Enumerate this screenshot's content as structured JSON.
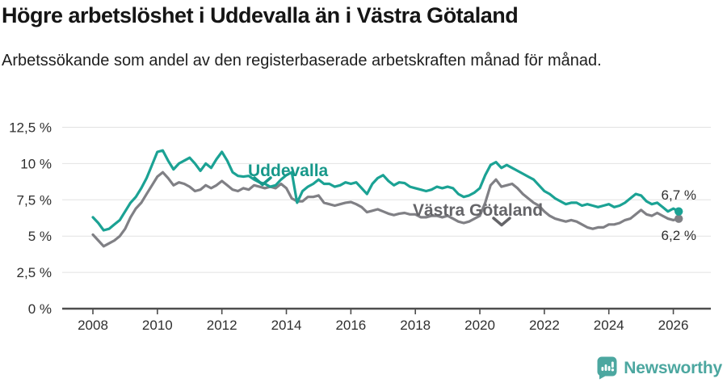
{
  "header": {
    "title": "Högre arbetslöshet i Uddevalla än i Västra Götaland",
    "subtitle": "Arbetssökande som andel av den registerbaserade arbetskraften månad för månad."
  },
  "chart_data": {
    "type": "line",
    "x_start_year": 2008,
    "x_step_years": 0.166667,
    "x_tick_years": [
      2008,
      2010,
      2012,
      2014,
      2016,
      2018,
      2020,
      2022,
      2024,
      2026
    ],
    "x_tick_labels": [
      "2008",
      "2010",
      "2012",
      "2014",
      "2016",
      "2018",
      "2020",
      "2022",
      "2024",
      "2026"
    ],
    "y_ticks": [
      {
        "value": 0,
        "label": "0 %"
      },
      {
        "value": 2.5,
        "label": "2,5 %"
      },
      {
        "value": 5,
        "label": "5 %"
      },
      {
        "value": 7.5,
        "label": "7,5 %"
      },
      {
        "value": 10,
        "label": "10 %"
      },
      {
        "value": 12.5,
        "label": "12,5 %"
      }
    ],
    "ylim": [
      0,
      12.5
    ],
    "grid": "horizontal",
    "legend": "inline-labels",
    "series": [
      {
        "name": "Uddevalla",
        "color": "#1ba294",
        "label_color": "#17988a",
        "end_label": "6,7 %",
        "end_value": 6.7,
        "values": [
          6.3,
          5.9,
          5.4,
          5.5,
          5.8,
          6.1,
          6.7,
          7.3,
          7.7,
          8.3,
          9.0,
          9.9,
          10.8,
          10.9,
          10.2,
          9.6,
          10.0,
          10.2,
          10.4,
          10.0,
          9.5,
          10.0,
          9.7,
          10.3,
          10.8,
          10.2,
          9.4,
          9.15,
          9.1,
          9.15,
          8.9,
          8.7,
          8.6,
          8.4,
          8.5,
          8.9,
          9.2,
          9.4,
          7.3,
          8.1,
          8.4,
          8.6,
          8.9,
          8.6,
          8.6,
          8.4,
          8.5,
          8.7,
          8.6,
          8.7,
          8.3,
          7.9,
          8.6,
          9.0,
          9.2,
          8.8,
          8.5,
          8.7,
          8.65,
          8.4,
          8.3,
          8.2,
          8.1,
          8.2,
          8.4,
          8.3,
          8.4,
          8.3,
          7.9,
          7.7,
          7.8,
          8.0,
          8.3,
          9.2,
          9.9,
          10.1,
          9.7,
          9.9,
          9.7,
          9.5,
          9.3,
          9.1,
          8.9,
          8.5,
          8.1,
          7.9,
          7.6,
          7.4,
          7.2,
          7.3,
          7.3,
          7.1,
          7.2,
          7.1,
          7.0,
          7.1,
          7.2,
          7.0,
          7.1,
          7.3,
          7.6,
          7.9,
          7.8,
          7.4,
          7.2,
          7.3,
          7.0,
          6.7,
          6.9,
          6.7
        ]
      },
      {
        "name": "Västra Götaland",
        "color": "#808085",
        "label_color": "#656569",
        "end_label": "6,2 %",
        "end_value": 6.2,
        "values": [
          5.1,
          4.7,
          4.3,
          4.5,
          4.7,
          5.0,
          5.5,
          6.3,
          6.9,
          7.3,
          7.9,
          8.5,
          9.1,
          9.4,
          9.0,
          8.5,
          8.7,
          8.6,
          8.4,
          8.1,
          8.2,
          8.5,
          8.3,
          8.5,
          8.8,
          8.5,
          8.2,
          8.1,
          8.3,
          8.2,
          8.5,
          8.4,
          8.3,
          8.4,
          8.3,
          8.6,
          8.3,
          7.6,
          7.4,
          7.4,
          7.7,
          7.7,
          7.8,
          7.3,
          7.2,
          7.1,
          7.2,
          7.3,
          7.35,
          7.2,
          7.0,
          6.65,
          6.75,
          6.85,
          6.7,
          6.55,
          6.45,
          6.55,
          6.6,
          6.5,
          6.5,
          6.3,
          6.3,
          6.4,
          6.4,
          6.3,
          6.4,
          6.2,
          6.0,
          5.9,
          6.0,
          6.2,
          6.4,
          7.3,
          8.5,
          8.9,
          8.4,
          8.5,
          8.6,
          8.3,
          7.9,
          7.6,
          7.3,
          7.1,
          6.7,
          6.4,
          6.2,
          6.1,
          6.0,
          6.1,
          6.0,
          5.8,
          5.6,
          5.5,
          5.6,
          5.6,
          5.8,
          5.8,
          5.9,
          6.1,
          6.2,
          6.5,
          6.8,
          6.5,
          6.4,
          6.6,
          6.4,
          6.2,
          6.1,
          6.2
        ]
      }
    ]
  },
  "branding": {
    "logo_text": "Newsworthy",
    "logo_color": "#4ca7a0"
  }
}
